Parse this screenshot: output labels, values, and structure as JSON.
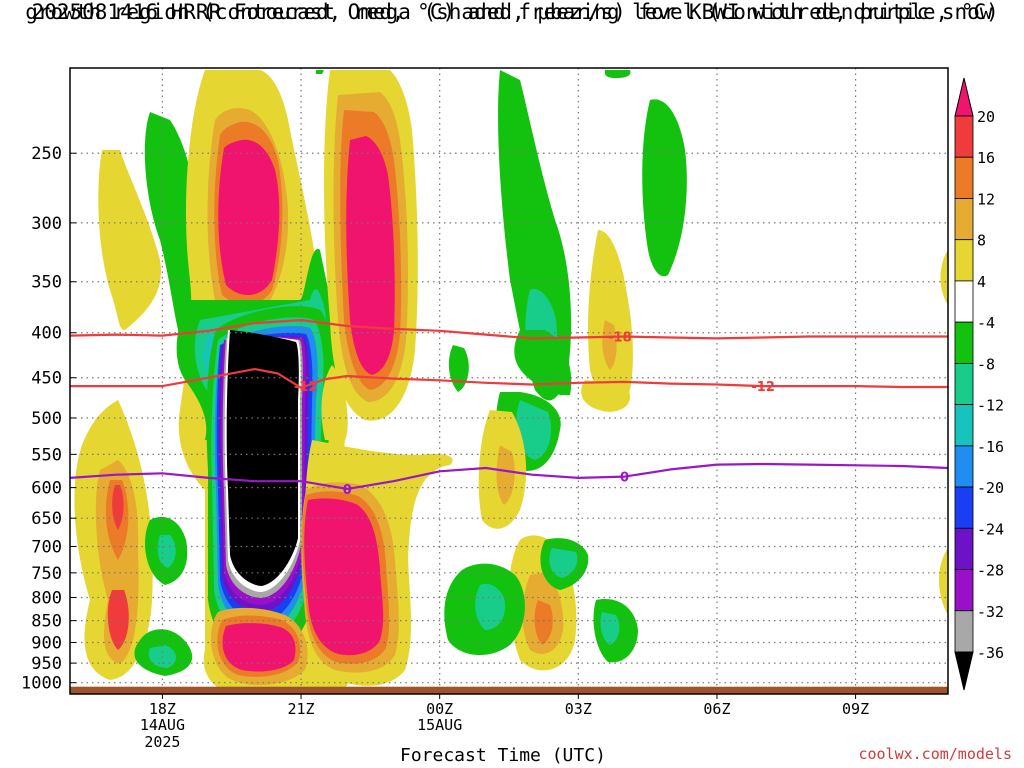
{
  "title_line1": "2025081416 HRRR Forecast Omega (shaded, μbar/s) for KBWI with dendritic snow",
  "title_line2": "growth region (contoured, red, °C) and freezing level (contoured, purple, °C)",
  "credit": "coolwx.com/models",
  "colors": {
    "dendritic": "#ef3b3b",
    "freezing": "#9a17c9",
    "ground": "#a0522d",
    "grid": "#777777"
  },
  "chart_data": {
    "type": "heatmap",
    "xlabel": "Forecast Time (UTC)",
    "ylabel": "",
    "y_scale": "log-pressure (mb), inverted",
    "y_ticks": [
      250,
      300,
      350,
      400,
      450,
      500,
      550,
      600,
      650,
      700,
      750,
      800,
      850,
      900,
      950,
      1000
    ],
    "x_ticks": [
      {
        "hour": 18,
        "label": "18Z",
        "sub1": "14AUG",
        "sub2": "2025"
      },
      {
        "hour": 21,
        "label": "21Z",
        "sub1": "",
        "sub2": ""
      },
      {
        "hour": 24,
        "label": "00Z",
        "sub1": "15AUG",
        "sub2": ""
      },
      {
        "hour": 27,
        "label": "03Z",
        "sub1": "",
        "sub2": ""
      },
      {
        "hour": 30,
        "label": "06Z",
        "sub1": "",
        "sub2": ""
      },
      {
        "hour": 33,
        "label": "09Z",
        "sub1": "",
        "sub2": ""
      }
    ],
    "x_range_hours": [
      16,
      35
    ],
    "y_range_mb": [
      200,
      1030
    ],
    "grid": true,
    "colorbar": {
      "labels": [
        "20",
        "16",
        "12",
        "8",
        "4",
        "-4",
        "-8",
        "-12",
        "-16",
        "-20",
        "-24",
        "-28",
        "-32",
        "-36"
      ],
      "colors": [
        "#f0146e",
        "#ef3b3b",
        "#ec7b27",
        "#e6ac32",
        "#e6d632",
        "#ffffff",
        "#12c20e",
        "#18cc8a",
        "#17c3bd",
        "#1f8ef0",
        "#1a3ff2",
        "#6e12c7",
        "#9a10c8",
        "#a8a8a8",
        "#000000"
      ]
    },
    "contours": [
      {
        "name": "-18",
        "label_hour": 20.45,
        "points": [
          [
            16,
            403
          ],
          [
            17,
            402
          ],
          [
            18,
            403
          ],
          [
            19,
            398
          ],
          [
            20,
            390
          ],
          [
            21,
            387
          ],
          [
            22,
            393
          ],
          [
            23,
            396
          ],
          [
            24,
            398
          ],
          [
            25,
            402
          ],
          [
            26,
            406
          ],
          [
            27,
            405
          ],
          [
            28,
            404
          ],
          [
            29,
            405
          ],
          [
            30,
            406
          ],
          [
            31,
            405
          ],
          [
            32,
            404
          ],
          [
            33,
            404
          ],
          [
            34,
            404
          ],
          [
            35,
            404
          ]
        ],
        "label": "-18"
      },
      {
        "name": "-18b",
        "label_hour": 27.9,
        "points": [],
        "label": "-18"
      },
      {
        "name": "-12",
        "label_hour": 21.1,
        "points": [
          [
            16,
            460
          ],
          [
            17,
            460
          ],
          [
            18,
            460
          ],
          [
            19,
            450
          ],
          [
            20,
            440
          ],
          [
            20.5,
            445
          ],
          [
            21,
            462
          ],
          [
            21.5,
            452
          ],
          [
            22,
            448
          ],
          [
            23,
            451
          ],
          [
            24,
            453
          ],
          [
            25,
            456
          ],
          [
            26,
            458
          ],
          [
            27,
            456
          ],
          [
            28,
            455
          ],
          [
            29,
            457
          ],
          [
            30,
            458
          ],
          [
            31,
            460
          ],
          [
            32,
            460
          ],
          [
            33,
            460
          ],
          [
            34,
            461
          ],
          [
            35,
            461
          ]
        ],
        "label": "-12"
      },
      {
        "name": "-12b",
        "label_hour": 31.0,
        "points": [],
        "label": "-12"
      },
      {
        "name": "0",
        "label_hour": 22.0,
        "points": [
          [
            16,
            585
          ],
          [
            17,
            580
          ],
          [
            18,
            578
          ],
          [
            19,
            585
          ],
          [
            20,
            590
          ],
          [
            21,
            590
          ],
          [
            22,
            602
          ],
          [
            23,
            590
          ],
          [
            24,
            575
          ],
          [
            25,
            570
          ],
          [
            26,
            580
          ],
          [
            27,
            585
          ],
          [
            28,
            583
          ],
          [
            29,
            572
          ],
          [
            30,
            565
          ],
          [
            31,
            564
          ],
          [
            32,
            565
          ],
          [
            33,
            566
          ],
          [
            34,
            567
          ],
          [
            35,
            570
          ]
        ],
        "label": "0"
      },
      {
        "name": "0b",
        "label_hour": 28.0,
        "points": [],
        "label": "0"
      }
    ]
  }
}
